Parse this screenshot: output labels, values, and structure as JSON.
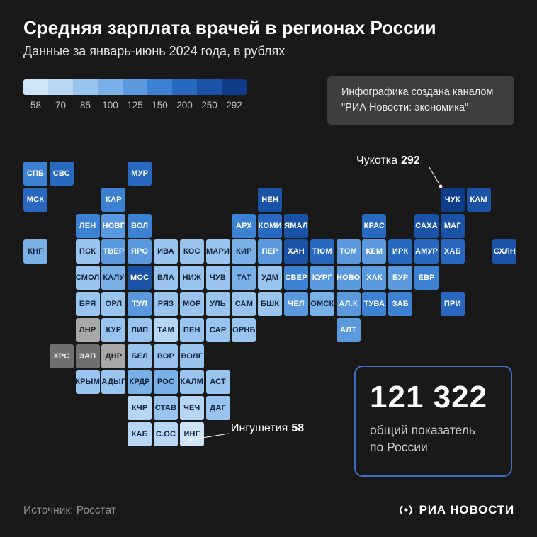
{
  "title": "Средняя зарплата врачей в регионах России",
  "subtitle": "Данные за январь-июнь 2024 года, в рублях",
  "credit": {
    "line1": "Инфографика создана каналом",
    "line2": "\"РИА Новости: экономика\""
  },
  "annotations": {
    "chukotka": {
      "label": "Чукотка",
      "value": "292"
    },
    "ingushetia": {
      "label": "Ингушетия",
      "value": "58"
    }
  },
  "summary": {
    "value": "121 322",
    "label": "общий показатель\nпо России"
  },
  "footer": {
    "source": "Источник: Росстат",
    "brand": "РИА НОВОСТИ"
  },
  "chart_data": {
    "type": "heatmap",
    "title": "Средняя зарплата врачей в регионах России",
    "legend_ticks": [
      "58",
      "70",
      "85",
      "100",
      "125",
      "150",
      "200",
      "250",
      "292"
    ],
    "legend_colors": [
      "#cfe4f7",
      "#b7d6f3",
      "#98c4ee",
      "#79b0e7",
      "#5a99de",
      "#3d82d2",
      "#2869bf",
      "#1a52a6",
      "#0e3c88"
    ],
    "no_data_colors": {
      "light": "#a8a8a8",
      "dark": "#6f6f6f"
    },
    "highlights": [
      {
        "region": "Чукотка",
        "value": 292
      },
      {
        "region": "Ингушетия",
        "value": 58
      }
    ],
    "national_average": 121322,
    "tiles": [
      {
        "l": "СПБ",
        "x": 0,
        "y": 0,
        "c": 6
      },
      {
        "l": "СВС",
        "x": 1,
        "y": 0,
        "c": 7
      },
      {
        "l": "МУР",
        "x": 4,
        "y": 0,
        "c": 7
      },
      {
        "l": "МСК",
        "x": 0,
        "y": 1,
        "c": 7
      },
      {
        "l": "КАР",
        "x": 3,
        "y": 1,
        "c": 6
      },
      {
        "l": "НЕН",
        "x": 9,
        "y": 1,
        "c": 8
      },
      {
        "l": "ЧУК",
        "x": 16,
        "y": 1,
        "c": 9
      },
      {
        "l": "КАМ",
        "x": 17,
        "y": 1,
        "c": 8
      },
      {
        "l": "ЛЕН",
        "x": 2,
        "y": 2,
        "c": 6
      },
      {
        "l": "НОВГ",
        "x": 3,
        "y": 2,
        "c": 5
      },
      {
        "l": "ВОЛ",
        "x": 4,
        "y": 2,
        "c": 6
      },
      {
        "l": "АРХ",
        "x": 8,
        "y": 2,
        "c": 6
      },
      {
        "l": "КОМИ",
        "x": 9,
        "y": 2,
        "c": 7
      },
      {
        "l": "ЯМАЛ",
        "x": 10,
        "y": 2,
        "c": 8
      },
      {
        "l": "КРАС",
        "x": 13,
        "y": 2,
        "c": 7
      },
      {
        "l": "САХА",
        "x": 15,
        "y": 2,
        "c": 8
      },
      {
        "l": "МАГ",
        "x": 16,
        "y": 2,
        "c": 8
      },
      {
        "l": "КНГ",
        "x": 0,
        "y": 3,
        "c": 4
      },
      {
        "l": "ПСК",
        "x": 2,
        "y": 3,
        "c": 3
      },
      {
        "l": "ТВЕР",
        "x": 3,
        "y": 3,
        "c": 5
      },
      {
        "l": "ЯРО",
        "x": 4,
        "y": 3,
        "c": 5
      },
      {
        "l": "ИВА",
        "x": 5,
        "y": 3,
        "c": 3
      },
      {
        "l": "КОС",
        "x": 6,
        "y": 3,
        "c": 3
      },
      {
        "l": "МАРИ",
        "x": 7,
        "y": 3,
        "c": 3
      },
      {
        "l": "КИР",
        "x": 8,
        "y": 3,
        "c": 4
      },
      {
        "l": "ПЕР",
        "x": 9,
        "y": 3,
        "c": 5
      },
      {
        "l": "ХАН",
        "x": 10,
        "y": 3,
        "c": 8
      },
      {
        "l": "ТЮМ",
        "x": 11,
        "y": 3,
        "c": 7
      },
      {
        "l": "ТОМ",
        "x": 12,
        "y": 3,
        "c": 5
      },
      {
        "l": "КЕМ",
        "x": 13,
        "y": 3,
        "c": 5
      },
      {
        "l": "ИРК",
        "x": 14,
        "y": 3,
        "c": 7
      },
      {
        "l": "АМУР",
        "x": 15,
        "y": 3,
        "c": 7
      },
      {
        "l": "ХАБ",
        "x": 16,
        "y": 3,
        "c": 7
      },
      {
        "l": "СХЛН",
        "x": 18,
        "y": 3,
        "c": 8
      },
      {
        "l": "СМОЛ",
        "x": 2,
        "y": 4,
        "c": 3
      },
      {
        "l": "КАЛУ",
        "x": 3,
        "y": 4,
        "c": 4
      },
      {
        "l": "МОС",
        "x": 4,
        "y": 4,
        "c": 8
      },
      {
        "l": "ВЛА",
        "x": 5,
        "y": 4,
        "c": 3
      },
      {
        "l": "НИЖ",
        "x": 6,
        "y": 4,
        "c": 3
      },
      {
        "l": "ЧУВ",
        "x": 7,
        "y": 4,
        "c": 3
      },
      {
        "l": "ТАТ",
        "x": 8,
        "y": 4,
        "c": 4
      },
      {
        "l": "УДМ",
        "x": 9,
        "y": 4,
        "c": 3
      },
      {
        "l": "СВЕР",
        "x": 10,
        "y": 4,
        "c": 6
      },
      {
        "l": "КУРГ",
        "x": 11,
        "y": 4,
        "c": 5
      },
      {
        "l": "НОВО",
        "x": 12,
        "y": 4,
        "c": 5
      },
      {
        "l": "ХАК",
        "x": 13,
        "y": 4,
        "c": 5
      },
      {
        "l": "БУР",
        "x": 14,
        "y": 4,
        "c": 5
      },
      {
        "l": "ЕВР",
        "x": 15,
        "y": 4,
        "c": 6
      },
      {
        "l": "БРЯ",
        "x": 2,
        "y": 5,
        "c": 3
      },
      {
        "l": "ОРЛ",
        "x": 3,
        "y": 5,
        "c": 3
      },
      {
        "l": "ТУЛ",
        "x": 4,
        "y": 5,
        "c": 5
      },
      {
        "l": "РЯЗ",
        "x": 5,
        "y": 5,
        "c": 3
      },
      {
        "l": "МОР",
        "x": 6,
        "y": 5,
        "c": 3
      },
      {
        "l": "УЛЬ",
        "x": 7,
        "y": 5,
        "c": 3
      },
      {
        "l": "САМ",
        "x": 8,
        "y": 5,
        "c": 3
      },
      {
        "l": "БШК",
        "x": 9,
        "y": 5,
        "c": 3
      },
      {
        "l": "ЧЕЛ",
        "x": 10,
        "y": 5,
        "c": 5
      },
      {
        "l": "ОМСК",
        "x": 11,
        "y": 5,
        "c": 4
      },
      {
        "l": "АЛ.К",
        "x": 12,
        "y": 5,
        "c": 5
      },
      {
        "l": "ТУВА",
        "x": 13,
        "y": 5,
        "c": 6
      },
      {
        "l": "ЗАБ",
        "x": 14,
        "y": 5,
        "c": 6
      },
      {
        "l": "ПРИ",
        "x": 16,
        "y": 5,
        "c": 7
      },
      {
        "l": "ЛНР",
        "x": 2,
        "y": 6,
        "c": "gl"
      },
      {
        "l": "КУР",
        "x": 3,
        "y": 6,
        "c": 3
      },
      {
        "l": "ЛИП",
        "x": 4,
        "y": 6,
        "c": 3
      },
      {
        "l": "ТАМ",
        "x": 5,
        "y": 6,
        "c": 2
      },
      {
        "l": "ПЕН",
        "x": 6,
        "y": 6,
        "c": 3
      },
      {
        "l": "САР",
        "x": 7,
        "y": 6,
        "c": 3
      },
      {
        "l": "ОРНБ",
        "x": 8,
        "y": 6,
        "c": 3
      },
      {
        "l": "АЛТ",
        "x": 12,
        "y": 6,
        "c": 5
      },
      {
        "l": "ХРС",
        "x": 1,
        "y": 7,
        "c": "gd"
      },
      {
        "l": "ЗАП",
        "x": 2,
        "y": 7,
        "c": "gd"
      },
      {
        "l": "ДНР",
        "x": 3,
        "y": 7,
        "c": "gl"
      },
      {
        "l": "БЕЛ",
        "x": 4,
        "y": 7,
        "c": 3
      },
      {
        "l": "ВОР",
        "x": 5,
        "y": 7,
        "c": 3
      },
      {
        "l": "ВОЛГ",
        "x": 6,
        "y": 7,
        "c": 3
      },
      {
        "l": "КРЫМ",
        "x": 2,
        "y": 8,
        "c": 3
      },
      {
        "l": "АДЫГ",
        "x": 3,
        "y": 8,
        "c": 3
      },
      {
        "l": "КРДР",
        "x": 4,
        "y": 8,
        "c": 4
      },
      {
        "l": "РОС",
        "x": 5,
        "y": 8,
        "c": 4
      },
      {
        "l": "КАЛМ",
        "x": 6,
        "y": 8,
        "c": 3
      },
      {
        "l": "АСТ",
        "x": 7,
        "y": 8,
        "c": 3
      },
      {
        "l": "КЧР",
        "x": 4,
        "y": 9,
        "c": 2
      },
      {
        "l": "СТАВ",
        "x": 5,
        "y": 9,
        "c": 3
      },
      {
        "l": "ЧЕЧ",
        "x": 6,
        "y": 9,
        "c": 2
      },
      {
        "l": "ДАГ",
        "x": 7,
        "y": 9,
        "c": 3
      },
      {
        "l": "КАБ",
        "x": 4,
        "y": 10,
        "c": 2
      },
      {
        "l": "С.ОС",
        "x": 5,
        "y": 10,
        "c": 2
      },
      {
        "l": "ИНГ",
        "x": 6,
        "y": 10,
        "c": 1
      }
    ]
  }
}
